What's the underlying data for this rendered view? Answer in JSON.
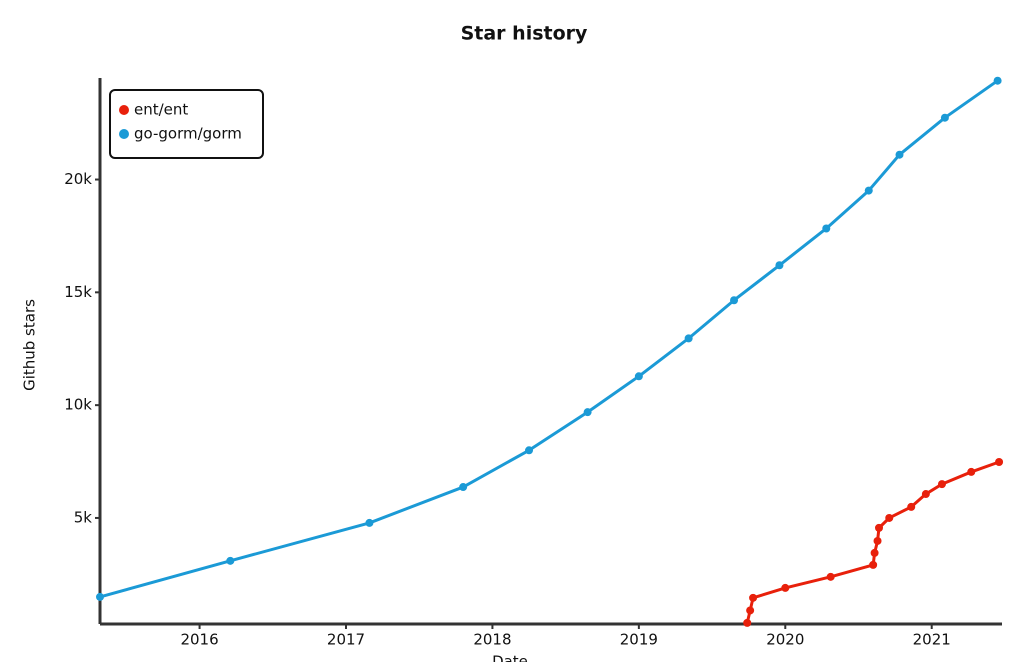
{
  "chart_data": {
    "type": "line",
    "title": "Star history",
    "xlabel": "Date",
    "ylabel": "Github stars",
    "xlim": [
      2015.32,
      2021.48
    ],
    "xticks": [
      2016,
      2017,
      2018,
      2019,
      2020,
      2021
    ],
    "ylim": [
      300,
      24500
    ],
    "yticks": [
      {
        "value": 5000,
        "label": "5k"
      },
      {
        "value": 10000,
        "label": "10k"
      },
      {
        "value": 15000,
        "label": "15k"
      },
      {
        "value": 20000,
        "label": "20k"
      }
    ],
    "grid": false,
    "legend": "upper left",
    "series": [
      {
        "name": "ent/ent",
        "color": "#e8200b",
        "x": [
          2019.74,
          2019.76,
          2019.78,
          2020.0,
          2020.31,
          2020.6,
          2020.61,
          2020.63,
          2020.64,
          2020.71,
          2020.86,
          2020.96,
          2021.07,
          2021.27,
          2021.46
        ],
        "values": [
          350,
          900,
          1460,
          1900,
          2390,
          2920,
          3450,
          3980,
          4560,
          5000,
          5490,
          6060,
          6500,
          7040,
          7480
        ]
      },
      {
        "name": "go-gorm/gorm",
        "color": "#1b9ad6",
        "x": [
          2015.32,
          2016.21,
          2017.16,
          2017.8,
          2018.25,
          2018.65,
          2019.0,
          2019.34,
          2019.65,
          2019.96,
          2020.28,
          2020.57,
          2020.78,
          2021.09,
          2021.45
        ],
        "values": [
          1500,
          3100,
          4780,
          6370,
          8000,
          9690,
          11280,
          12960,
          14650,
          16200,
          17830,
          19510,
          21100,
          22740,
          24380
        ]
      }
    ]
  }
}
